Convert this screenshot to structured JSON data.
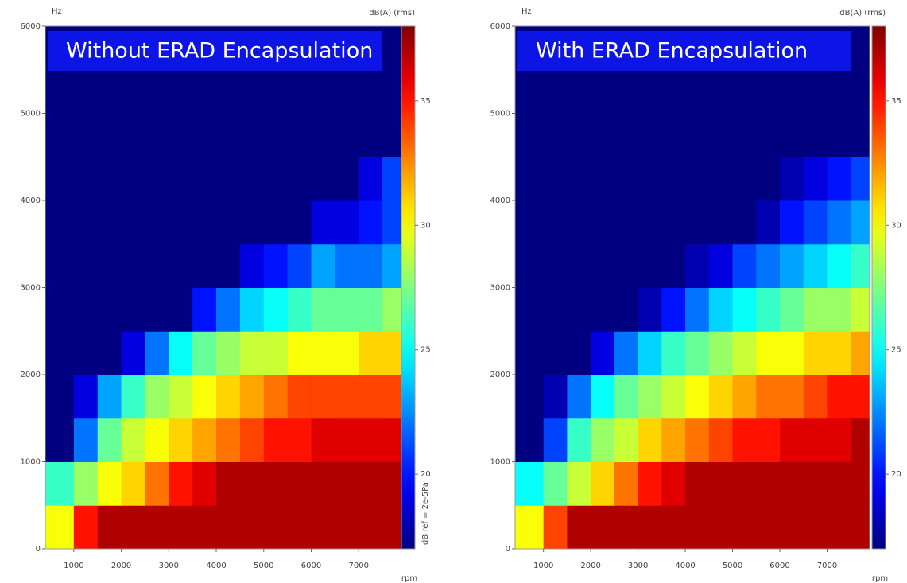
{
  "chart_data": [
    {
      "type": "heatmap",
      "title": "Without ERAD Encapsulation",
      "ylabel": "Hz",
      "xlabel": "rpm",
      "clabel": "dB(A) (rms)",
      "cnote": "dB ref = 2e-5Pa",
      "colormap": "jet",
      "xlim": [
        400,
        7900
      ],
      "ylim": [
        0,
        6000
      ],
      "clim": [
        17,
        38
      ],
      "xticks": [
        1000,
        2000,
        3000,
        4000,
        5000,
        6000,
        7000
      ],
      "yticks": [
        0,
        1000,
        2000,
        3000,
        4000,
        5000,
        6000
      ],
      "cticks": [
        20,
        25,
        30,
        35
      ],
      "xbins": [
        400,
        1000,
        1500,
        2000,
        2500,
        3000,
        3500,
        4000,
        4500,
        5000,
        5500,
        6000,
        6500,
        7000,
        7500,
        7900
      ],
      "ybins": [
        0,
        500,
        1000,
        1500,
        2000,
        2500,
        3000,
        3500,
        4000,
        4500,
        5000,
        5500,
        6000
      ],
      "values": [
        [
          30,
          35,
          37,
          37,
          37,
          37,
          37,
          37,
          37,
          37,
          37,
          37,
          37,
          37,
          37
        ],
        [
          26,
          28,
          30,
          31,
          33,
          35,
          36,
          37,
          37,
          37,
          37,
          37,
          37,
          37,
          37
        ],
        [
          17,
          22,
          27,
          29,
          30,
          31,
          32,
          33,
          34,
          35,
          35,
          36,
          36,
          36,
          36
        ],
        [
          17,
          19,
          23,
          26,
          28,
          29,
          30,
          31,
          32,
          33,
          34,
          34,
          34,
          34,
          34
        ],
        [
          17,
          17,
          17,
          19,
          22,
          25,
          27,
          28,
          29,
          29,
          30,
          30,
          30,
          31,
          31
        ],
        [
          17,
          17,
          17,
          17,
          17,
          17,
          20,
          22,
          24,
          25,
          26,
          27,
          27,
          27,
          28
        ],
        [
          17,
          17,
          17,
          17,
          17,
          17,
          17,
          17,
          19,
          20,
          21,
          23,
          22,
          22,
          23
        ],
        [
          17,
          17,
          17,
          17,
          17,
          17,
          17,
          17,
          17,
          17,
          17,
          19,
          19,
          20,
          21
        ],
        [
          17,
          17,
          17,
          17,
          17,
          17,
          17,
          17,
          17,
          17,
          17,
          17,
          17,
          19,
          21
        ],
        [
          17,
          17,
          17,
          17,
          17,
          17,
          17,
          17,
          17,
          17,
          17,
          17,
          17,
          17,
          17
        ],
        [
          17,
          17,
          17,
          17,
          17,
          17,
          17,
          17,
          17,
          17,
          17,
          17,
          17,
          17,
          17
        ],
        [
          17,
          17,
          17,
          17,
          17,
          17,
          17,
          17,
          17,
          17,
          17,
          17,
          17,
          17,
          17
        ]
      ]
    },
    {
      "type": "heatmap",
      "title": "With ERAD Encapsulation",
      "ylabel": "Hz",
      "xlabel": "rpm",
      "clabel": "dB(A) (rms)",
      "colormap": "jet",
      "xlim": [
        400,
        7900
      ],
      "ylim": [
        0,
        6000
      ],
      "clim": [
        17,
        38
      ],
      "xticks": [
        1000,
        2000,
        3000,
        4000,
        5000,
        6000,
        7000
      ],
      "yticks": [
        0,
        1000,
        2000,
        3000,
        4000,
        5000,
        6000
      ],
      "cticks": [
        20,
        25,
        30,
        35
      ],
      "xbins": [
        400,
        1000,
        1500,
        2000,
        2500,
        3000,
        3500,
        4000,
        4500,
        5000,
        5500,
        6000,
        6500,
        7000,
        7500,
        7900
      ],
      "ybins": [
        0,
        500,
        1000,
        1500,
        2000,
        2500,
        3000,
        3500,
        4000,
        4500,
        5000,
        5500,
        6000
      ],
      "values": [
        [
          30,
          34,
          37,
          37,
          37,
          37,
          37,
          37,
          37,
          37,
          37,
          37,
          37,
          37,
          37
        ],
        [
          25,
          27,
          29,
          31,
          33,
          35,
          36,
          37,
          37,
          37,
          37,
          37,
          37,
          37,
          37
        ],
        [
          17,
          21,
          26,
          28,
          29,
          31,
          32,
          33,
          34,
          35,
          35,
          36,
          36,
          36,
          37
        ],
        [
          17,
          18,
          22,
          25,
          27,
          28,
          29,
          30,
          31,
          32,
          33,
          33,
          34,
          35,
          35
        ],
        [
          17,
          17,
          17,
          19,
          22,
          24,
          26,
          27,
          28,
          29,
          30,
          30,
          31,
          31,
          32
        ],
        [
          17,
          17,
          17,
          17,
          17,
          18,
          20,
          22,
          24,
          25,
          26,
          27,
          28,
          28,
          29
        ],
        [
          17,
          17,
          17,
          17,
          17,
          17,
          17,
          18,
          19,
          21,
          22,
          23,
          24,
          25,
          26
        ],
        [
          17,
          17,
          17,
          17,
          17,
          17,
          17,
          17,
          17,
          17,
          18,
          20,
          21,
          22,
          23
        ],
        [
          17,
          17,
          17,
          17,
          17,
          17,
          17,
          17,
          17,
          17,
          17,
          18,
          19,
          20,
          21
        ],
        [
          17,
          17,
          17,
          17,
          17,
          17,
          17,
          17,
          17,
          17,
          17,
          17,
          17,
          17,
          17
        ],
        [
          17,
          17,
          17,
          17,
          17,
          17,
          17,
          17,
          17,
          17,
          17,
          17,
          17,
          17,
          17
        ],
        [
          17,
          17,
          17,
          17,
          17,
          17,
          17,
          17,
          17,
          17,
          17,
          17,
          17,
          17,
          17
        ]
      ]
    }
  ]
}
